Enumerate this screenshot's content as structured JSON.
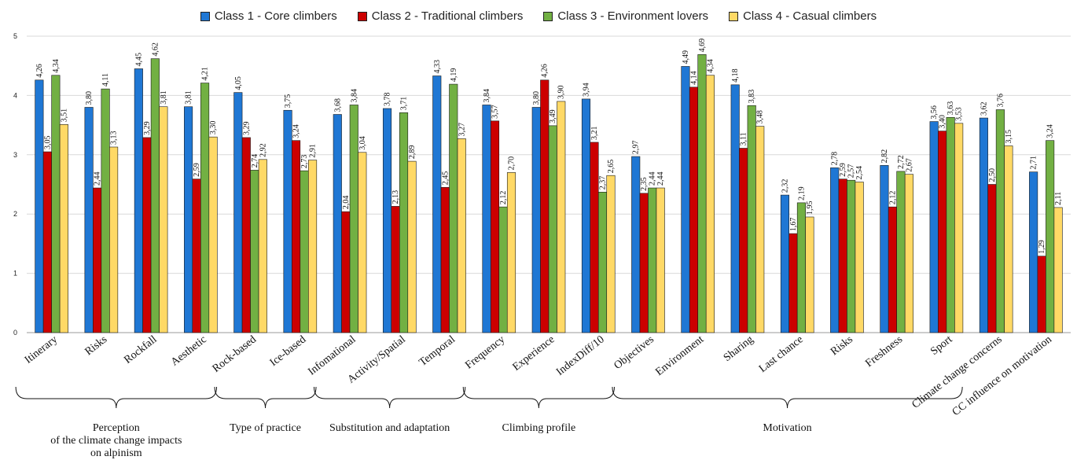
{
  "chart_data": {
    "type": "bar",
    "title": "",
    "xlabel": "",
    "ylabel": "",
    "ylim": [
      0,
      5
    ],
    "yticks": [
      "0",
      "1",
      "2",
      "3",
      "4",
      "5"
    ],
    "grid": true,
    "legend_position": "top",
    "categories": [
      "Itinerary",
      "Risks",
      "Rockfall",
      "Aesthetic",
      "Rock-based",
      "Ice-based",
      "Infomational",
      "Activity/Spatial",
      "Temporal",
      "Frequency",
      "Experience",
      "IndexDiff/10",
      "Objectives",
      "Environment",
      "Sharing",
      "Last chance",
      "Risks",
      "Freshness",
      "Sport",
      "Climate change concerns",
      "CC influence on motivation"
    ],
    "series": [
      {
        "name": "Class 1 - Core climbers",
        "color": "#1f77d4",
        "values": [
          4.26,
          3.8,
          4.45,
          3.81,
          4.05,
          3.75,
          3.68,
          3.78,
          4.33,
          3.84,
          3.8,
          3.94,
          2.97,
          4.49,
          4.18,
          2.32,
          2.78,
          2.82,
          3.56,
          3.62,
          2.71
        ],
        "labels": [
          "4,26",
          "3,80",
          "4,45",
          "3,81",
          "4,05",
          "3,75",
          "3,68",
          "3,78",
          "4,33",
          "3,84",
          "3,80",
          "3,94",
          "2,97",
          "4,49",
          "4,18",
          "2,32",
          "2,78",
          "2,82",
          "3,56",
          "3,62",
          "2,71"
        ]
      },
      {
        "name": "Class 2 - Traditional climbers",
        "color": "#cc0000",
        "values": [
          3.05,
          2.44,
          3.29,
          2.59,
          3.29,
          3.24,
          2.04,
          2.13,
          2.45,
          3.57,
          4.26,
          3.21,
          2.35,
          4.14,
          3.11,
          1.67,
          2.59,
          2.12,
          3.4,
          2.5,
          1.29
        ],
        "labels": [
          "3,05",
          "2,44",
          "3,29",
          "2,59",
          "3,29",
          "3,24",
          "2,04",
          "2,13",
          "2,45",
          "3,57",
          "4,26",
          "3,21",
          "2,35",
          "4,14",
          "3,11",
          "1,67",
          "2,59",
          "2,12",
          "3,40",
          "2,50",
          "1,29"
        ]
      },
      {
        "name": "Class 3 - Environment lovers",
        "color": "#72b043",
        "values": [
          4.34,
          4.11,
          4.62,
          4.21,
          2.74,
          2.73,
          3.84,
          3.71,
          4.19,
          2.12,
          3.49,
          2.37,
          2.44,
          4.69,
          3.83,
          2.19,
          2.57,
          2.72,
          3.63,
          3.76,
          3.24
        ],
        "labels": [
          "4,34",
          "4,11",
          "4,62",
          "4,21",
          "2,74",
          "2,73",
          "3,84",
          "3,71",
          "4,19",
          "2,12",
          "3,49",
          "2,37",
          "2,44",
          "4,69",
          "3,83",
          "2,19",
          "2,57",
          "2,72",
          "3,63",
          "3,76",
          "3,24"
        ]
      },
      {
        "name": "Class 4 - Casual climbers",
        "color": "#ffd966",
        "values": [
          3.51,
          3.13,
          3.81,
          3.3,
          2.92,
          2.91,
          3.04,
          2.89,
          3.27,
          2.7,
          3.9,
          2.65,
          2.44,
          4.34,
          3.48,
          1.95,
          2.54,
          2.67,
          3.53,
          3.15,
          2.11
        ],
        "labels": [
          "3,51",
          "3,13",
          "3,81",
          "3,30",
          "2,92",
          "2,91",
          "3,04",
          "2,89",
          "3,27",
          "2,70",
          "3,90",
          "2,65",
          "2,44",
          "4,34",
          "3,48",
          "1,95",
          "2,54",
          "2,67",
          "3,53",
          "3,15",
          "2,11"
        ]
      }
    ],
    "groups": [
      {
        "label_lines": [
          "Perception",
          "of the climate change impacts",
          "on alpinism"
        ],
        "start": 0,
        "end": 3
      },
      {
        "label_lines": [
          "Type of practice"
        ],
        "start": 4,
        "end": 5
      },
      {
        "label_lines": [
          "Substitution and adaptation"
        ],
        "start": 6,
        "end": 8
      },
      {
        "label_lines": [
          "Climbing profile"
        ],
        "start": 9,
        "end": 11
      },
      {
        "label_lines": [
          "Motivation"
        ],
        "start": 12,
        "end": 18
      }
    ]
  }
}
